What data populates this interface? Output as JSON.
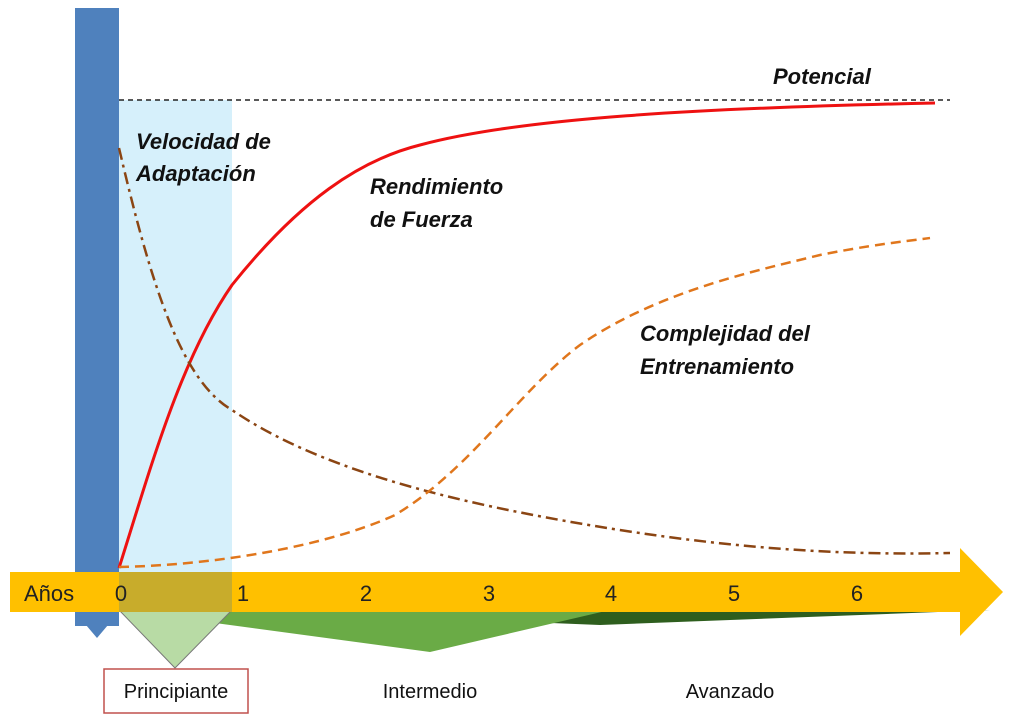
{
  "labels": {
    "potencial": "Potencial",
    "velocidad_line1": "Velocidad de",
    "velocidad_line2": "Adaptación",
    "rendimiento_line1": "Rendimiento",
    "rendimiento_line2": "de Fuerza",
    "complejidad_line1": "Complejidad del",
    "complejidad_line2": "Entrenamiento"
  },
  "axis": {
    "label": "Años",
    "ticks": [
      "0",
      "1",
      "2",
      "3",
      "4",
      "5",
      "6"
    ]
  },
  "levels": {
    "principiante": "Principiante",
    "intermedio": "Intermedio",
    "avanzado": "Avanzado"
  },
  "colors": {
    "strength_curve": "#ee1111",
    "adaptation_curve": "#8b4513",
    "complexity_curve": "#e0761c",
    "axis_arrow": "#ffc000",
    "blue_bar": "#4f81bd",
    "beginner_band": "#d6f0fb",
    "beginner_triangle": "#b8dba5",
    "intermediate_triangle": "#6aab46",
    "advanced_triangle": "#2e5e1e",
    "principiante_border": "#c0504d"
  }
}
